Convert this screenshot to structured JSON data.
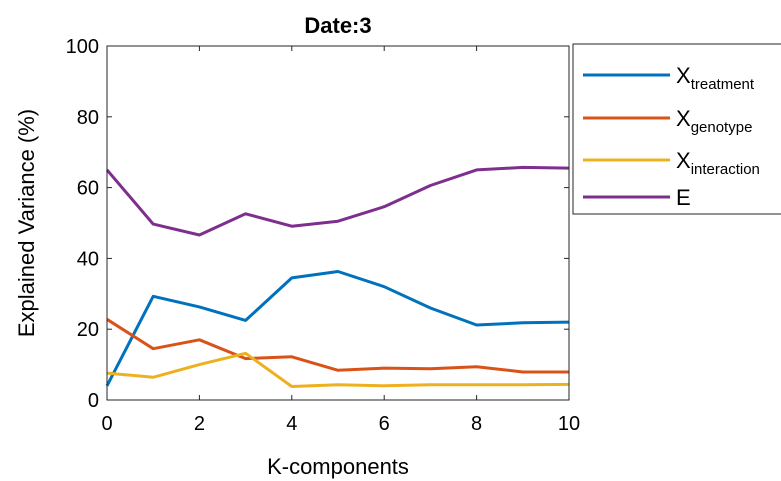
{
  "chart_data": {
    "type": "line",
    "title": "Date:3",
    "xlabel": "K-components",
    "ylabel": "Explained Variance (%)",
    "xlim": [
      0,
      10
    ],
    "ylim": [
      0,
      100
    ],
    "xticks": [
      "0",
      "2",
      "4",
      "6",
      "8",
      "10"
    ],
    "yticks": [
      "0",
      "20",
      "40",
      "60",
      "80",
      "100"
    ],
    "grid": false,
    "legend_position": "outside-right",
    "x": [
      0,
      1,
      2,
      3,
      4,
      5,
      6,
      7,
      8,
      9,
      10
    ],
    "series": [
      {
        "name": "X",
        "subscript": "treatment",
        "color": "#0072BD",
        "values": [
          4,
          29.3,
          26.3,
          22.5,
          34.5,
          36.3,
          32,
          26,
          21.2,
          21.8,
          22
        ]
      },
      {
        "name": "X",
        "subscript": "genotype",
        "color": "#D95319",
        "values": [
          22.8,
          14.5,
          17,
          11.7,
          12.2,
          8.4,
          9,
          8.8,
          9.4,
          7.9,
          7.9
        ]
      },
      {
        "name": "X",
        "subscript": "interaction",
        "color": "#EDB120",
        "values": [
          7.6,
          6.4,
          10,
          13.2,
          3.8,
          4.3,
          4,
          4.3,
          4.3,
          4.3,
          4.4
        ]
      },
      {
        "name": "E",
        "subscript": "",
        "color": "#7E2F8E",
        "values": [
          65,
          49.7,
          46.6,
          52.6,
          49.1,
          50.5,
          54.6,
          60.6,
          65,
          65.7,
          65.5
        ]
      }
    ]
  }
}
